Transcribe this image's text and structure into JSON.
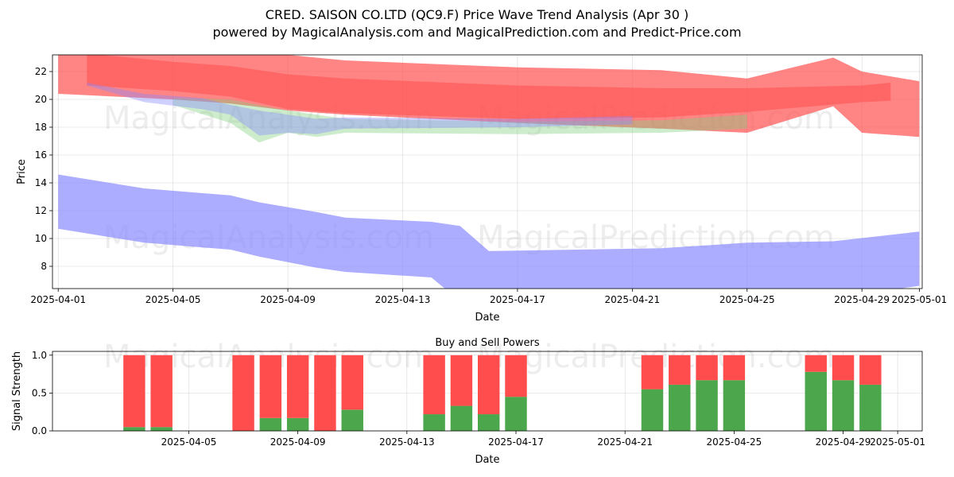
{
  "title": {
    "line1": "CRED. SAISON CO.LTD (QC9.F) Price Wave Trend Analysis (Apr 30 )",
    "line2": "powered by MagicalAnalysis.com and MagicalPrediction.com and Predict-Price.com"
  },
  "watermarks": [
    "MagicalAnalysis.com",
    "MagicalPrediction.com"
  ],
  "colors": {
    "sell": "#ff4d4d",
    "buy": "#4ca64c",
    "band_red": "#ff5050",
    "band_blue": "#8a8aff",
    "band_green": "#7fcf7f"
  },
  "chart_data": [
    {
      "type": "area",
      "xlabel": "Date",
      "ylabel": "Price",
      "ylim": [
        6.4,
        23.2
      ],
      "xlim_days": [
        -0.2,
        30.1
      ],
      "x_ticks": [
        "2025-04-01",
        "2025-04-05",
        "2025-04-09",
        "2025-04-13",
        "2025-04-17",
        "2025-04-21",
        "2025-04-25",
        "2025-04-29",
        "2025-05-01"
      ],
      "y_ticks": [
        8,
        10,
        12,
        14,
        16,
        18,
        20,
        22
      ],
      "grid": true,
      "series": [
        {
          "color": "#8a8aff",
          "x": [
            "2025-04-01",
            "2025-04-04",
            "2025-04-07",
            "2025-04-08",
            "2025-04-10",
            "2025-04-11",
            "2025-04-14",
            "2025-04-15",
            "2025-04-16",
            "2025-04-22",
            "2025-04-25",
            "2025-04-28",
            "2025-05-01"
          ],
          "upper": [
            14.6,
            13.6,
            13.1,
            12.6,
            11.9,
            11.5,
            11.2,
            10.9,
            9.1,
            9.3,
            9.7,
            9.8,
            10.5
          ],
          "lower": [
            10.7,
            9.7,
            9.2,
            8.7,
            7.9,
            7.6,
            7.2,
            5.5,
            5.0,
            5.2,
            5.5,
            5.7,
            6.6
          ]
        },
        {
          "color": "#ff5050",
          "x": [
            "2025-04-01",
            "2025-04-05",
            "2025-04-07",
            "2025-04-09",
            "2025-04-11",
            "2025-04-17",
            "2025-04-22",
            "2025-04-25",
            "2025-04-28",
            "2025-04-29",
            "2025-05-01"
          ],
          "upper": [
            23.5,
            23.5,
            23.5,
            23.2,
            22.8,
            22.3,
            22.1,
            21.5,
            23.0,
            22.0,
            21.3
          ],
          "lower": [
            20.4,
            20.0,
            19.7,
            19.2,
            18.9,
            18.3,
            17.9,
            17.6,
            19.5,
            17.6,
            17.3
          ]
        },
        {
          "color": "#ff5050",
          "x": [
            "2025-04-02",
            "2025-04-05",
            "2025-04-07",
            "2025-04-09",
            "2025-04-11",
            "2025-04-17",
            "2025-04-22",
            "2025-04-25",
            "2025-04-29",
            "2025-04-30"
          ],
          "upper": [
            23.3,
            22.7,
            22.4,
            21.8,
            21.5,
            21.0,
            20.8,
            20.8,
            21.0,
            21.2
          ],
          "lower": [
            21.0,
            20.6,
            20.2,
            19.3,
            19.0,
            18.6,
            18.7,
            19.1,
            19.8,
            19.9
          ]
        },
        {
          "color": "#7fcf7f",
          "x": [
            "2025-04-05",
            "2025-04-07",
            "2025-04-08",
            "2025-04-09",
            "2025-04-10",
            "2025-04-11",
            "2025-04-17",
            "2025-04-22",
            "2025-04-25"
          ],
          "upper": [
            20.1,
            20.0,
            19.6,
            19.2,
            18.9,
            18.6,
            18.4,
            18.5,
            18.9
          ],
          "lower": [
            19.6,
            18.3,
            16.9,
            17.6,
            17.3,
            17.6,
            17.5,
            17.6,
            17.9
          ]
        },
        {
          "color": "#8a8aff",
          "x": [
            "2025-04-02",
            "2025-04-04",
            "2025-04-06",
            "2025-04-07",
            "2025-04-08",
            "2025-04-09",
            "2025-04-10",
            "2025-04-11",
            "2025-04-17",
            "2025-04-21"
          ],
          "upper": [
            21.2,
            20.4,
            20.1,
            19.6,
            19.2,
            18.9,
            18.6,
            18.7,
            18.6,
            18.8
          ],
          "lower": [
            21.0,
            19.8,
            19.3,
            18.9,
            17.4,
            17.6,
            17.5,
            17.9,
            18.0,
            18.2
          ]
        }
      ]
    },
    {
      "type": "bar",
      "title": "Buy and Sell Powers",
      "xlabel": "Date",
      "ylabel": "Signal Strength",
      "ylim": [
        0,
        1.05
      ],
      "y_ticks": [
        "0.0",
        "0.5",
        "1.0"
      ],
      "x_ticks": [
        "2025-04-05",
        "2025-04-09",
        "2025-04-13",
        "2025-04-17",
        "2025-04-21",
        "2025-04-25",
        "2025-04-29",
        "2025-05-01"
      ],
      "categories": [
        "2025-04-03",
        "2025-04-04",
        "2025-04-07",
        "2025-04-08",
        "2025-04-09",
        "2025-04-10",
        "2025-04-11",
        "2025-04-14",
        "2025-04-15",
        "2025-04-16",
        "2025-04-17",
        "2025-04-22",
        "2025-04-23",
        "2025-04-24",
        "2025-04-25",
        "2025-04-28",
        "2025-04-29",
        "2025-04-30"
      ],
      "series": [
        {
          "color": "#4ca64c",
          "values": [
            0.05,
            0.05,
            0.0,
            0.17,
            0.17,
            0.0,
            0.28,
            0.22,
            0.33,
            0.22,
            0.45,
            0.55,
            0.61,
            0.67,
            0.67,
            0.78,
            0.67,
            0.61
          ]
        },
        {
          "color": "#ff4d4d",
          "values": [
            0.95,
            0.95,
            1.0,
            0.83,
            0.83,
            1.0,
            0.72,
            0.78,
            0.67,
            0.78,
            0.55,
            0.45,
            0.39,
            0.33,
            0.33,
            0.22,
            0.33,
            0.39
          ]
        }
      ]
    }
  ]
}
